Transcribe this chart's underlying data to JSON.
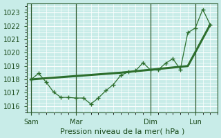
{
  "background_color": "#c8ece8",
  "grid_color": "#ffffff",
  "line_color": "#2d6e2d",
  "xlabel": "Pression niveau de la mer( hPa )",
  "ylim": [
    1015.5,
    1023.7
  ],
  "yticks": [
    1016,
    1017,
    1018,
    1019,
    1020,
    1021,
    1022,
    1023
  ],
  "xtick_labels": [
    "Sam",
    "Mar",
    "Dim",
    "Lun"
  ],
  "xtick_positions": [
    0,
    3,
    8,
    11
  ],
  "vline_positions": [
    0,
    3,
    8,
    11
  ],
  "series1_x": [
    0,
    0.5,
    1.0,
    1.5,
    2.0,
    2.5,
    3.0,
    3.5,
    4.0,
    4.5,
    5.0,
    5.5,
    6.0,
    6.5,
    7.0,
    7.5,
    8.0,
    8.5,
    9.0,
    9.5,
    10.0,
    10.5,
    11.0,
    11.5,
    12.0
  ],
  "series1_y": [
    1018.0,
    1018.45,
    1017.8,
    1017.05,
    1016.65,
    1016.65,
    1016.6,
    1016.6,
    1016.15,
    1016.6,
    1017.15,
    1017.6,
    1018.3,
    1018.55,
    1018.65,
    1019.25,
    1018.7,
    1018.7,
    1019.2,
    1019.55,
    1018.75,
    1021.5,
    1021.85,
    1023.25,
    1022.1
  ],
  "series2_x": [
    0,
    6,
    10.5,
    12.0
  ],
  "series2_y": [
    1018.0,
    1018.5,
    1019.0,
    1022.1
  ],
  "xlabel_fontsize": 8.0,
  "tick_labelsize": 7,
  "figsize": [
    3.2,
    2.0
  ],
  "dpi": 100
}
